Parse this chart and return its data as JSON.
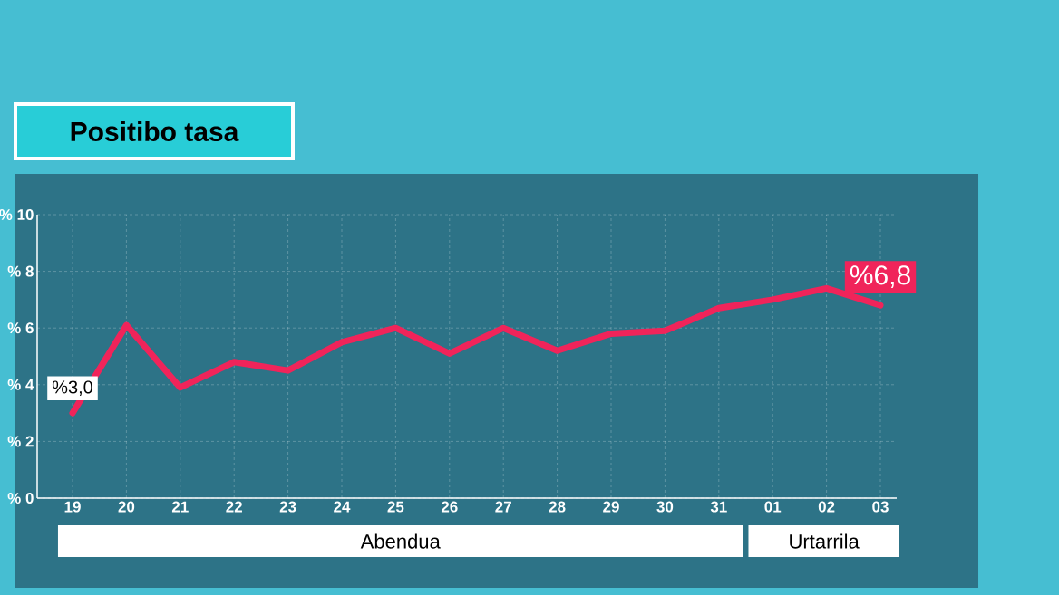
{
  "chart_data": {
    "type": "line",
    "title": "Positibo tasa",
    "categories": [
      "19",
      "20",
      "21",
      "22",
      "23",
      "24",
      "25",
      "26",
      "27",
      "28",
      "29",
      "30",
      "31",
      "01",
      "02",
      "03"
    ],
    "series": [
      {
        "color": "#f0245a",
        "values": [
          3.0,
          6.1,
          3.9,
          4.8,
          4.5,
          5.5,
          6.0,
          5.1,
          6.0,
          5.2,
          5.8,
          5.9,
          6.7,
          7.0,
          7.4,
          6.8
        ],
        "value_labels": [
          "%3,0",
          null,
          null,
          null,
          null,
          null,
          null,
          null,
          null,
          null,
          null,
          null,
          null,
          null,
          null,
          "%6,8"
        ]
      }
    ],
    "ylim": [
      0,
      10
    ],
    "yticks": [
      {
        "value": 0,
        "label": "% 0"
      },
      {
        "value": 2,
        "label": "% 2"
      },
      {
        "value": 4,
        "label": "% 4"
      },
      {
        "value": 6,
        "label": "% 6"
      },
      {
        "value": 8,
        "label": "% 8"
      },
      {
        "value": 10,
        "label": "% 10"
      }
    ],
    "grid": true,
    "annotations": [
      "Abendua",
      "Urtarrila"
    ]
  }
}
